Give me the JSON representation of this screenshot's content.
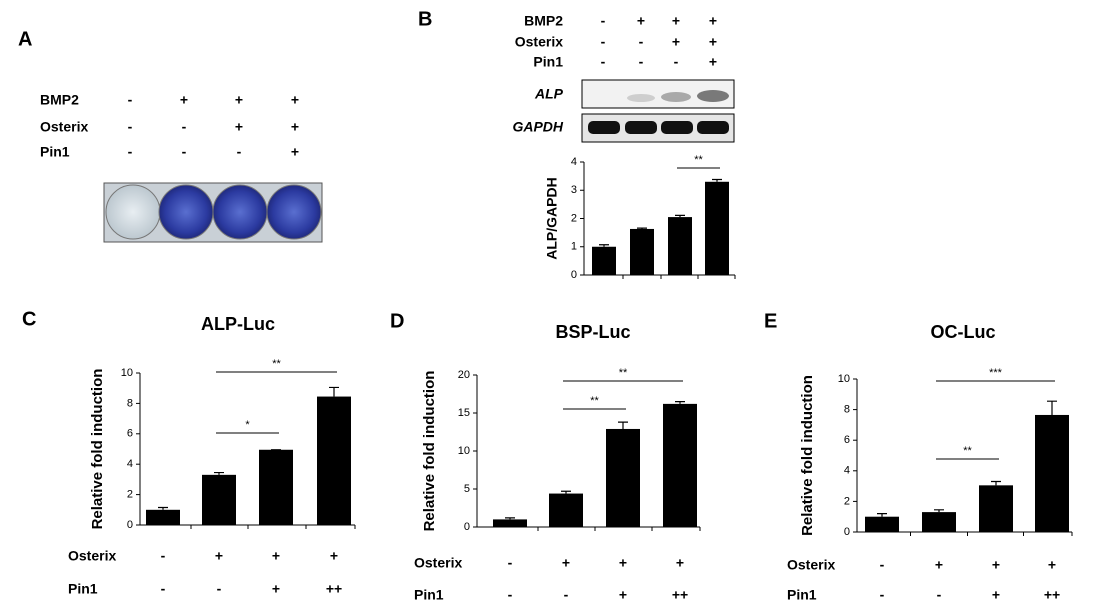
{
  "panel_labels": [
    "A",
    "B",
    "C",
    "D",
    "E"
  ],
  "panel_a": {
    "treatments": [
      {
        "name": "BMP2",
        "values": [
          "-",
          "+",
          "+",
          "+"
        ]
      },
      {
        "name": "Osterix",
        "values": [
          "-",
          "-",
          "+",
          "+"
        ]
      },
      {
        "name": "Pin1",
        "values": [
          "-",
          "-",
          "-",
          "+"
        ]
      }
    ]
  },
  "panel_b": {
    "treatments": [
      {
        "name": "BMP2",
        "values": [
          "-",
          "+",
          "+",
          "+"
        ]
      },
      {
        "name": "Osterix",
        "values": [
          "-",
          "-",
          "+",
          "+"
        ]
      },
      {
        "name": "Pin1",
        "values": [
          "-",
          "-",
          "-",
          "+"
        ]
      }
    ],
    "blots": [
      "ALP",
      "GAPDH"
    ]
  },
  "chart_data": [
    {
      "type": "bar",
      "ylabel": "ALP/GAPDH",
      "color": "#000000",
      "values": [
        1.0,
        1.63,
        2.05,
        3.3
      ],
      "errors": [
        0.07,
        0.03,
        0.06,
        0.08
      ],
      "ylim": [
        0,
        4
      ],
      "yticks": [
        0,
        1,
        2,
        3,
        4
      ],
      "annotations": [
        "**"
      ]
    },
    {
      "type": "bar",
      "title": "ALP-Luc",
      "ylabel": "Relative fold induction",
      "color": "#000000",
      "values": [
        1.0,
        3.3,
        4.95,
        8.45
      ],
      "errors": [
        0.15,
        0.15,
        0,
        0.6
      ],
      "ylim": [
        0,
        10
      ],
      "yticks": [
        0,
        2,
        4,
        6,
        8,
        10
      ],
      "annotations": [
        "*",
        "**"
      ],
      "treatments": [
        {
          "name": "Osterix",
          "values": [
            "-",
            "+",
            "+",
            "+"
          ]
        },
        {
          "name": "Pin1",
          "values": [
            "-",
            "-",
            "+",
            "++"
          ]
        }
      ]
    },
    {
      "type": "bar",
      "title": "BSP-Luc",
      "ylabel": "Relative fold induction",
      "color": "#000000",
      "values": [
        1.0,
        4.4,
        12.9,
        16.2
      ],
      "errors": [
        0.2,
        0.3,
        0.9,
        0.3
      ],
      "ylim": [
        0,
        20
      ],
      "yticks": [
        0,
        5,
        10,
        15,
        20
      ],
      "annotations": [
        "**",
        "**"
      ],
      "treatments": [
        {
          "name": "Osterix",
          "values": [
            "-",
            "+",
            "+",
            "+"
          ]
        },
        {
          "name": "Pin1",
          "values": [
            "-",
            "-",
            "+",
            "++"
          ]
        }
      ]
    },
    {
      "type": "bar",
      "title": "OC-Luc",
      "ylabel": "Relative fold induction",
      "color": "#000000",
      "values": [
        1.0,
        1.3,
        3.05,
        7.65
      ],
      "errors": [
        0.2,
        0.15,
        0.25,
        0.9
      ],
      "ylim": [
        0,
        10
      ],
      "yticks": [
        0,
        2,
        4,
        6,
        8,
        10
      ],
      "annotations": [
        "**",
        "***"
      ],
      "treatments": [
        {
          "name": "Osterix",
          "values": [
            "-",
            "+",
            "+",
            "+"
          ]
        },
        {
          "name": "Pin1",
          "values": [
            "-",
            "-",
            "+",
            "++"
          ]
        }
      ]
    }
  ]
}
